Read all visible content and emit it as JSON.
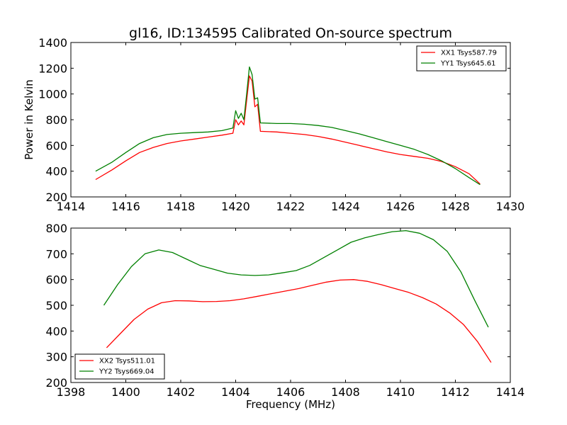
{
  "chart_data": [
    {
      "type": "line",
      "title": "gl16, ID:134595 Calibrated On-source spectrum",
      "xlabel": "",
      "ylabel": "Power in Kelvin",
      "xlim": [
        1414,
        1430
      ],
      "ylim": [
        200,
        1400
      ],
      "xticks": [
        1414,
        1416,
        1418,
        1420,
        1422,
        1424,
        1426,
        1428,
        1430
      ],
      "yticks": [
        200,
        400,
        600,
        800,
        1000,
        1200,
        1400
      ],
      "grid": false,
      "legend_position": "top-right",
      "series": [
        {
          "name": "XX1 Tsys587.79",
          "color": "#ff0000",
          "points": [
            [
              1414.9,
              335
            ],
            [
              1415.5,
              410
            ],
            [
              1416,
              480
            ],
            [
              1416.5,
              545
            ],
            [
              1417,
              585
            ],
            [
              1417.5,
              615
            ],
            [
              1418,
              635
            ],
            [
              1418.5,
              650
            ],
            [
              1419,
              665
            ],
            [
              1419.5,
              680
            ],
            [
              1419.9,
              695
            ],
            [
              1420.0,
              800
            ],
            [
              1420.1,
              760
            ],
            [
              1420.2,
              790
            ],
            [
              1420.3,
              760
            ],
            [
              1420.4,
              950
            ],
            [
              1420.5,
              1140
            ],
            [
              1420.6,
              1100
            ],
            [
              1420.7,
              900
            ],
            [
              1420.8,
              920
            ],
            [
              1420.9,
              710
            ],
            [
              1421.5,
              705
            ],
            [
              1422,
              695
            ],
            [
              1422.5,
              685
            ],
            [
              1423,
              670
            ],
            [
              1423.5,
              650
            ],
            [
              1424,
              625
            ],
            [
              1424.5,
              600
            ],
            [
              1425,
              575
            ],
            [
              1425.5,
              550
            ],
            [
              1426,
              530
            ],
            [
              1426.5,
              515
            ],
            [
              1427,
              500
            ],
            [
              1427.5,
              475
            ],
            [
              1428,
              435
            ],
            [
              1428.5,
              380
            ],
            [
              1428.9,
              300
            ]
          ]
        },
        {
          "name": "YY1 Tsys645.61",
          "color": "#008000",
          "points": [
            [
              1414.9,
              400
            ],
            [
              1415.5,
              470
            ],
            [
              1416,
              545
            ],
            [
              1416.5,
              615
            ],
            [
              1417,
              660
            ],
            [
              1417.5,
              685
            ],
            [
              1418,
              695
            ],
            [
              1418.5,
              700
            ],
            [
              1419,
              705
            ],
            [
              1419.5,
              715
            ],
            [
              1419.9,
              735
            ],
            [
              1420.0,
              870
            ],
            [
              1420.1,
              810
            ],
            [
              1420.2,
              850
            ],
            [
              1420.3,
              800
            ],
            [
              1420.4,
              1000
            ],
            [
              1420.5,
              1210
            ],
            [
              1420.6,
              1150
            ],
            [
              1420.7,
              960
            ],
            [
              1420.8,
              970
            ],
            [
              1420.9,
              775
            ],
            [
              1421.5,
              770
            ],
            [
              1422,
              770
            ],
            [
              1422.5,
              765
            ],
            [
              1423,
              755
            ],
            [
              1423.5,
              740
            ],
            [
              1424,
              715
            ],
            [
              1424.5,
              690
            ],
            [
              1425,
              660
            ],
            [
              1425.5,
              630
            ],
            [
              1426,
              600
            ],
            [
              1426.5,
              570
            ],
            [
              1427,
              530
            ],
            [
              1427.5,
              480
            ],
            [
              1428,
              420
            ],
            [
              1428.5,
              350
            ],
            [
              1428.9,
              295
            ]
          ]
        }
      ]
    },
    {
      "type": "line",
      "title": "",
      "xlabel": "Frequency (MHz)",
      "ylabel": "",
      "xlim": [
        1398,
        1414
      ],
      "ylim": [
        200,
        800
      ],
      "xticks": [
        1398,
        1400,
        1402,
        1404,
        1406,
        1408,
        1410,
        1412,
        1414
      ],
      "yticks": [
        200,
        300,
        400,
        500,
        600,
        700,
        800
      ],
      "grid": false,
      "legend_position": "bottom-left",
      "series": [
        {
          "name": "XX2 Tsys511.01",
          "color": "#ff0000",
          "points": [
            [
              1399.3,
              335
            ],
            [
              1399.8,
              390
            ],
            [
              1400.3,
              445
            ],
            [
              1400.8,
              485
            ],
            [
              1401.3,
              510
            ],
            [
              1401.8,
              518
            ],
            [
              1402.3,
              517
            ],
            [
              1402.8,
              514
            ],
            [
              1403.3,
              515
            ],
            [
              1403.8,
              518
            ],
            [
              1404.3,
              525
            ],
            [
              1404.8,
              535
            ],
            [
              1405.3,
              545
            ],
            [
              1405.8,
              555
            ],
            [
              1406.3,
              565
            ],
            [
              1406.8,
              578
            ],
            [
              1407.3,
              590
            ],
            [
              1407.8,
              598
            ],
            [
              1408.3,
              600
            ],
            [
              1408.8,
              593
            ],
            [
              1409.3,
              580
            ],
            [
              1409.8,
              565
            ],
            [
              1410.3,
              550
            ],
            [
              1410.8,
              530
            ],
            [
              1411.3,
              505
            ],
            [
              1411.8,
              470
            ],
            [
              1412.3,
              425
            ],
            [
              1412.8,
              360
            ],
            [
              1413.3,
              278
            ]
          ]
        },
        {
          "name": "YY2 Tsys669.04",
          "color": "#008000",
          "points": [
            [
              1399.2,
              500
            ],
            [
              1399.7,
              580
            ],
            [
              1400.2,
              650
            ],
            [
              1400.7,
              700
            ],
            [
              1401.2,
              715
            ],
            [
              1401.7,
              705
            ],
            [
              1402.2,
              680
            ],
            [
              1402.7,
              655
            ],
            [
              1403.2,
              640
            ],
            [
              1403.7,
              625
            ],
            [
              1404.2,
              618
            ],
            [
              1404.7,
              616
            ],
            [
              1405.2,
              618
            ],
            [
              1405.7,
              626
            ],
            [
              1406.2,
              635
            ],
            [
              1406.7,
              655
            ],
            [
              1407.2,
              685
            ],
            [
              1407.7,
              715
            ],
            [
              1408.2,
              745
            ],
            [
              1408.7,
              762
            ],
            [
              1409.2,
              775
            ],
            [
              1409.7,
              786
            ],
            [
              1410.2,
              790
            ],
            [
              1410.7,
              780
            ],
            [
              1411.2,
              755
            ],
            [
              1411.7,
              710
            ],
            [
              1412.2,
              630
            ],
            [
              1412.7,
              520
            ],
            [
              1413.2,
              415
            ]
          ]
        }
      ]
    }
  ]
}
